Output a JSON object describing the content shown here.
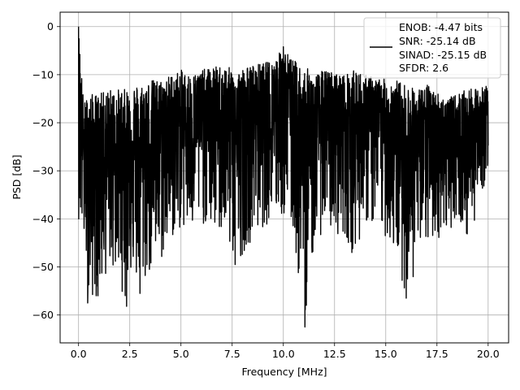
{
  "chart_data": {
    "type": "line",
    "title": "",
    "xlabel": "Frequency [MHz]",
    "ylabel": "PSD [dB]",
    "xlim": [
      -0.9,
      21.0
    ],
    "ylim": [
      -65.8,
      3.0
    ],
    "xticks": [
      0.0,
      2.5,
      5.0,
      7.5,
      10.0,
      12.5,
      15.0,
      17.5,
      20.0
    ],
    "xtick_labels": [
      "0.0",
      "2.5",
      "5.0",
      "7.5",
      "10.0",
      "12.5",
      "15.0",
      "17.5",
      "20.0"
    ],
    "yticks": [
      0,
      -10,
      -20,
      -30,
      -40,
      -50,
      -60
    ],
    "ytick_labels": [
      "0",
      "−10",
      "−20",
      "−30",
      "−40",
      "−50",
      "−60"
    ],
    "grid": true,
    "legend_position": "top-right",
    "legend_lines": [
      "ENOB: -4.47 bits",
      "SNR: -25.14 dB",
      "SINAD: -25.15 dB",
      "SFDR: 2.6"
    ],
    "series": [
      {
        "color": "#000000",
        "x_range": [
          0,
          20
        ],
        "envelope": [
          {
            "x": 0.0,
            "upper": 0.0,
            "lower": -40
          },
          {
            "x": 0.25,
            "upper": -16,
            "lower": -46
          },
          {
            "x": 0.5,
            "upper": -14,
            "lower": -57.5
          },
          {
            "x": 1.0,
            "upper": -14,
            "lower": -56
          },
          {
            "x": 1.5,
            "upper": -13,
            "lower": -50
          },
          {
            "x": 2.0,
            "upper": -13,
            "lower": -53
          },
          {
            "x": 2.3,
            "upper": -13,
            "lower": -58
          },
          {
            "x": 2.5,
            "upper": -12,
            "lower": -51
          },
          {
            "x": 3.0,
            "upper": -12,
            "lower": -55.5
          },
          {
            "x": 3.5,
            "upper": -11,
            "lower": -52
          },
          {
            "x": 4.0,
            "upper": -11,
            "lower": -50
          },
          {
            "x": 4.5,
            "upper": -10,
            "lower": -45
          },
          {
            "x": 5.0,
            "upper": -9,
            "lower": -42
          },
          {
            "x": 5.5,
            "upper": -10,
            "lower": -44
          },
          {
            "x": 6.0,
            "upper": -9,
            "lower": -41
          },
          {
            "x": 7.0,
            "upper": -8,
            "lower": -44
          },
          {
            "x": 7.7,
            "upper": -9,
            "lower": -49.5
          },
          {
            "x": 8.5,
            "upper": -8,
            "lower": -44
          },
          {
            "x": 9.5,
            "upper": -7,
            "lower": -40
          },
          {
            "x": 10.0,
            "upper": -4.3,
            "lower": -40
          },
          {
            "x": 10.5,
            "upper": -7,
            "lower": -44
          },
          {
            "x": 11.0,
            "upper": -8,
            "lower": -62.5
          },
          {
            "x": 11.5,
            "upper": -10,
            "lower": -46
          },
          {
            "x": 12.0,
            "upper": -9,
            "lower": -42
          },
          {
            "x": 13.0,
            "upper": -10,
            "lower": -44
          },
          {
            "x": 13.5,
            "upper": -9,
            "lower": -47
          },
          {
            "x": 14.0,
            "upper": -10,
            "lower": -41
          },
          {
            "x": 15.0,
            "upper": -11,
            "lower": -44
          },
          {
            "x": 15.5,
            "upper": -11,
            "lower": -48
          },
          {
            "x": 16.0,
            "upper": -12,
            "lower": -56
          },
          {
            "x": 16.5,
            "upper": -13,
            "lower": -51
          },
          {
            "x": 17.0,
            "upper": -12,
            "lower": -46
          },
          {
            "x": 18.0,
            "upper": -15,
            "lower": -43
          },
          {
            "x": 18.5,
            "upper": -14,
            "lower": -40
          },
          {
            "x": 19.0,
            "upper": -13,
            "lower": -45
          },
          {
            "x": 19.5,
            "upper": -13,
            "lower": -38
          },
          {
            "x": 20.0,
            "upper": -12,
            "lower": -30
          }
        ],
        "spikes": [
          {
            "x": 0.0,
            "y": 0.0
          },
          {
            "x": 0.45,
            "y": -57.5
          },
          {
            "x": 0.95,
            "y": -56.0
          },
          {
            "x": 2.35,
            "y": -58.2
          },
          {
            "x": 3.0,
            "y": -55.5
          },
          {
            "x": 7.65,
            "y": -49.5
          },
          {
            "x": 10.0,
            "y": -4.2
          },
          {
            "x": 11.05,
            "y": -62.5
          },
          {
            "x": 13.35,
            "y": -47.0
          },
          {
            "x": 16.0,
            "y": -56.5
          },
          {
            "x": 18.95,
            "y": -43.0
          }
        ]
      }
    ]
  }
}
